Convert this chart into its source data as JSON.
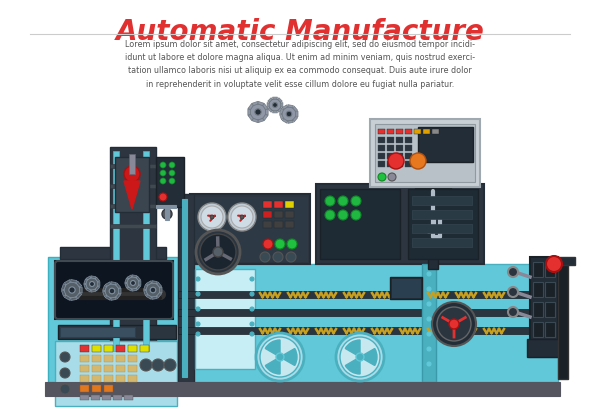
{
  "title": "Automatic Manufacture",
  "title_color": "#e03030",
  "title_fontsize": 20,
  "lorem_text": "Lorem ipsum dolor sit amet, consectetur adipiscing elit, sed do eiusmod tempor incidi-\nidunt ut labore et dolore magna aliqua. Ut enim ad minim veniam, quis nostrud exerci-\ntation ullamco laboris nisi ut aliquip ex ea commodo consequat. Duis aute irure dolor\nin reprehenderit in voluptate velit esse cillum dolore eu fugiat nulla pariatur.",
  "bg_color": "#ffffff",
  "teal": "#60c8d8",
  "teal_d": "#4ab0bf",
  "teal_l": "#a8dce8",
  "teal_ll": "#c8eef5",
  "dark": "#2d3640",
  "dark2": "#232d38",
  "gray": "#8090a0",
  "gray2": "#c0ccd8",
  "gray3": "#545c68",
  "gold": "#c8a020",
  "red": "#e53030",
  "green": "#50c850",
  "orange": "#e87820",
  "white": "#ffffff",
  "black": "#000000",
  "gear_gray": "#9098a8"
}
